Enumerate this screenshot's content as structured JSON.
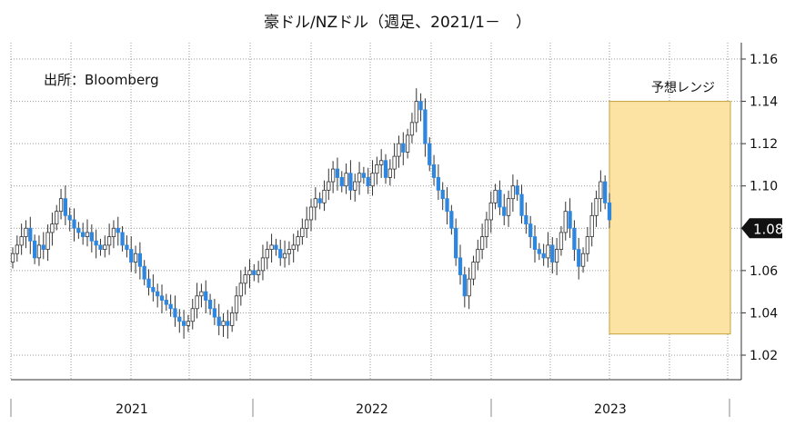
{
  "title": "豪ドル/NZドル（週足、2021/1－　）",
  "source_label": "出所：Bloomberg",
  "chart_data": {
    "type": "candlestick",
    "title": "豪ドル/NZドル（週足、2021/1－　）",
    "ylim": [
      1.01,
      1.165
    ],
    "yticks": [
      "1.02",
      "1.04",
      "1.06",
      "1.08",
      "1.10",
      "1.12",
      "1.14",
      "1.16"
    ],
    "xaxis": {
      "years": [
        "2021",
        "2022",
        "2023"
      ]
    },
    "current_value": "1.08",
    "forecast_range": {
      "label": "予想レンジ",
      "low": 1.03,
      "high": 1.14
    },
    "grid": true,
    "colors": {
      "up": "#ffffff",
      "down": "#2e86de",
      "outline": "#333333",
      "range_fill": "#fce3a4",
      "range_border": "#c9a33b"
    },
    "candles_close": [
      1.068,
      1.072,
      1.076,
      1.08,
      1.074,
      1.066,
      1.072,
      1.07,
      1.078,
      1.082,
      1.088,
      1.094,
      1.086,
      1.084,
      1.08,
      1.078,
      1.076,
      1.078,
      1.074,
      1.072,
      1.07,
      1.072,
      1.076,
      1.08,
      1.078,
      1.072,
      1.07,
      1.064,
      1.068,
      1.062,
      1.056,
      1.052,
      1.05,
      1.048,
      1.046,
      1.044,
      1.042,
      1.038,
      1.036,
      1.034,
      1.036,
      1.042,
      1.048,
      1.05,
      1.046,
      1.042,
      1.038,
      1.034,
      1.036,
      1.034,
      1.04,
      1.048,
      1.054,
      1.058,
      1.06,
      1.058,
      1.06,
      1.066,
      1.07,
      1.072,
      1.07,
      1.066,
      1.068,
      1.07,
      1.072,
      1.076,
      1.08,
      1.084,
      1.09,
      1.094,
      1.092,
      1.098,
      1.102,
      1.108,
      1.104,
      1.1,
      1.106,
      1.098,
      1.102,
      1.106,
      1.104,
      1.1,
      1.106,
      1.11,
      1.112,
      1.104,
      1.108,
      1.114,
      1.12,
      1.116,
      1.124,
      1.13,
      1.14,
      1.136,
      1.12,
      1.11,
      1.104,
      1.098,
      1.094,
      1.088,
      1.08,
      1.066,
      1.058,
      1.048,
      1.056,
      1.064,
      1.07,
      1.076,
      1.084,
      1.092,
      1.098,
      1.09,
      1.086,
      1.094,
      1.1,
      1.096,
      1.086,
      1.082,
      1.076,
      1.07,
      1.068,
      1.066,
      1.072,
      1.064,
      1.07,
      1.078,
      1.088,
      1.08,
      1.07,
      1.062,
      1.068,
      1.076,
      1.086,
      1.094,
      1.102,
      1.092,
      1.084
    ]
  }
}
